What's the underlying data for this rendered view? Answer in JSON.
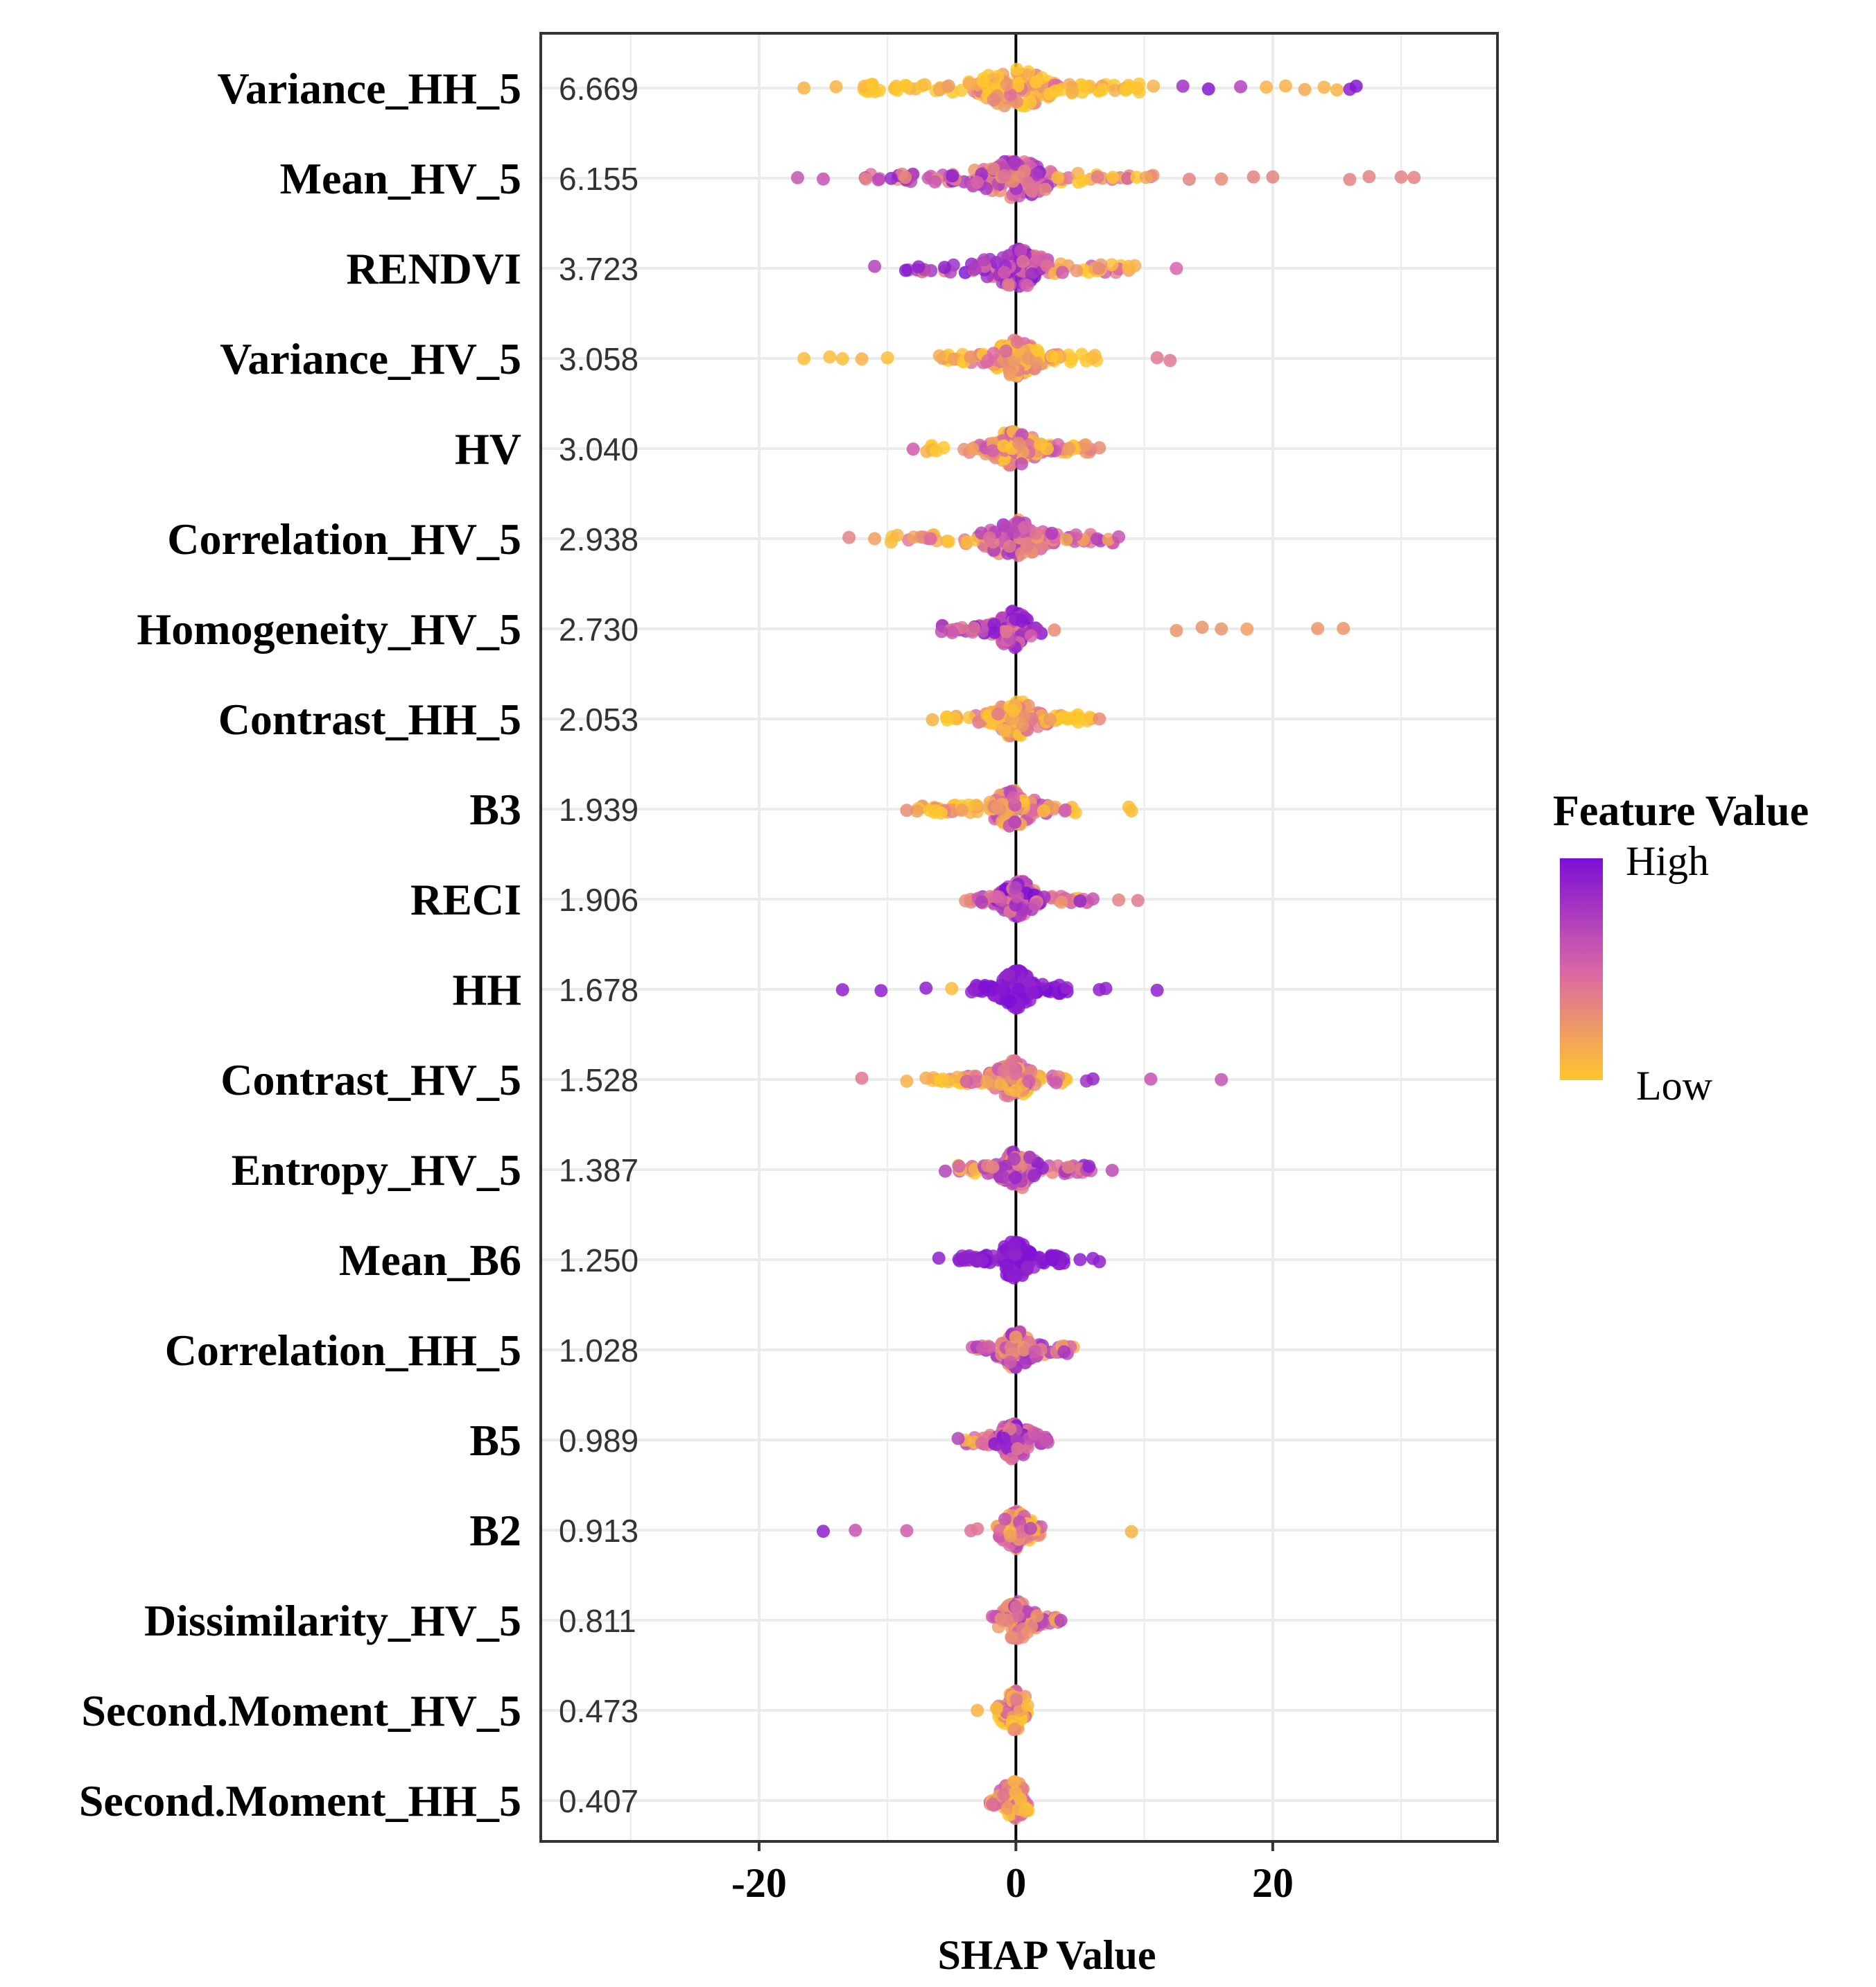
{
  "chart_data": {
    "type": "scatter",
    "title": "",
    "xlabel": "SHAP Value",
    "ylabel": "",
    "xlim": [
      -37,
      37.5
    ],
    "xticks": [
      -20,
      0,
      20
    ],
    "xtick_labels": [
      "-20",
      "0",
      "20"
    ],
    "grid": true,
    "legend": {
      "title": "Feature Value",
      "high_label": "High",
      "low_label": "Low",
      "position": "right",
      "high_color": "#7b0fd6",
      "mid_color": "#d965a8",
      "low_color": "#ffc72c"
    },
    "colors": {
      "zero_line": "#000000",
      "grid": "#ebebeb",
      "frame": "#333333"
    },
    "features": [
      {
        "name": "Variance_HH_5",
        "importance": "6.669",
        "min": -16.5,
        "max": 26.5,
        "core": [
          -12,
          11
        ],
        "skew": 0.25,
        "lowSide": "both",
        "coreMix": 0.15,
        "n": 170,
        "outliers": [
          [
            -16.5,
            0.1
          ],
          [
            -14,
            0.1
          ],
          [
            13,
            0.8
          ],
          [
            15,
            0.95
          ],
          [
            17.5,
            0.7
          ],
          [
            19.5,
            0.1
          ],
          [
            21,
            0.1
          ],
          [
            22.5,
            0.15
          ],
          [
            24,
            0.1
          ],
          [
            25,
            0.1
          ],
          [
            26,
            0.9
          ],
          [
            26.5,
            0.95
          ]
        ]
      },
      {
        "name": "Mean_HV_5",
        "importance": "6.155",
        "min": -17,
        "max": 31,
        "core": [
          -12,
          11
        ],
        "skew": 0.6,
        "lowSide": "right",
        "coreMix": 0.6,
        "n": 150,
        "outliers": [
          [
            -17,
            0.6
          ],
          [
            -15,
            0.6
          ],
          [
            13.5,
            0.35
          ],
          [
            16,
            0.3
          ],
          [
            18.5,
            0.35
          ],
          [
            20,
            0.35
          ],
          [
            26,
            0.35
          ],
          [
            27.5,
            0.35
          ],
          [
            30,
            0.35
          ],
          [
            31,
            0.35
          ]
        ]
      },
      {
        "name": "RENDVI",
        "importance": "3.723",
        "min": -11,
        "max": 12.5,
        "core": [
          -9,
          10
        ],
        "skew": 0.6,
        "lowSide": "right",
        "coreMix": 0.65,
        "n": 130,
        "outliers": [
          [
            -11,
            0.7
          ],
          [
            12.5,
            0.5
          ]
        ]
      },
      {
        "name": "Variance_HV_5",
        "importance": "3.058",
        "min": -16.5,
        "max": 12,
        "core": [
          -6,
          7
        ],
        "skew": 0.3,
        "lowSide": "both",
        "coreMix": 0.2,
        "n": 130,
        "outliers": [
          [
            -16.5,
            0.05
          ],
          [
            -14.5,
            0.05
          ],
          [
            -13.5,
            0.05
          ],
          [
            -10,
            0.05
          ],
          [
            -12,
            0.1
          ],
          [
            11,
            0.4
          ],
          [
            12,
            0.4
          ]
        ]
      },
      {
        "name": "HV",
        "importance": "3.040",
        "min": -8,
        "max": 6.5,
        "core": [
          -7,
          6
        ],
        "skew": 0.3,
        "lowSide": "both",
        "coreMix": 0.3,
        "n": 130,
        "outliers": [
          [
            -8,
            0.55
          ],
          [
            6.5,
            0.3
          ]
        ]
      },
      {
        "name": "Correlation_HV_5",
        "importance": "2.938",
        "min": -13,
        "max": 8,
        "core": [
          -10,
          8
        ],
        "skew": 0.5,
        "lowSide": "left",
        "coreMix": 0.5,
        "n": 130,
        "outliers": [
          [
            -13,
            0.35
          ],
          [
            -11,
            0.2
          ],
          [
            8,
            0.6
          ]
        ]
      },
      {
        "name": "Homogeneity_HV_5",
        "importance": "2.730",
        "min": -7,
        "max": 25.5,
        "core": [
          -6,
          2
        ],
        "skew": 0.7,
        "lowSide": "right",
        "coreMix": 0.7,
        "n": 110,
        "outliers": [
          [
            3,
            0.3
          ],
          [
            12.5,
            0.25
          ],
          [
            14.5,
            0.25
          ],
          [
            16,
            0.25
          ],
          [
            18,
            0.2
          ],
          [
            23.5,
            0.25
          ],
          [
            25.5,
            0.25
          ]
        ]
      },
      {
        "name": "Contrast_HH_5",
        "importance": "2.053",
        "min": -6.5,
        "max": 6.5,
        "core": [
          -6,
          6
        ],
        "skew": 0.2,
        "lowSide": "both",
        "coreMix": 0.15,
        "n": 130,
        "outliers": [
          [
            -6.5,
            0.1
          ],
          [
            6.5,
            0.3
          ]
        ]
      },
      {
        "name": "B3",
        "importance": "1.939",
        "min": -8.5,
        "max": 9,
        "core": [
          -8,
          5
        ],
        "skew": 0.4,
        "lowSide": "both",
        "coreMix": 0.35,
        "n": 120,
        "outliers": [
          [
            -8.5,
            0.3
          ],
          [
            9,
            0.05
          ],
          [
            8.8,
            0.05
          ]
        ]
      },
      {
        "name": "RECI",
        "importance": "1.906",
        "min": -4.5,
        "max": 9.5,
        "core": [
          -4,
          6
        ],
        "skew": 0.6,
        "lowSide": "right",
        "coreMix": 0.65,
        "n": 110,
        "outliers": [
          [
            8,
            0.35
          ],
          [
            9.5,
            0.4
          ],
          [
            5,
            0.85
          ],
          [
            6,
            0.6
          ]
        ]
      },
      {
        "name": "HH",
        "importance": "1.678",
        "min": -13.5,
        "max": 11,
        "core": [
          -3.5,
          4
        ],
        "skew": 0.95,
        "lowSide": "none",
        "coreMix": 0.97,
        "n": 140,
        "outliers": [
          [
            -13.5,
            0.9
          ],
          [
            -10.5,
            0.9
          ],
          [
            -7,
            0.9
          ],
          [
            -5,
            0.05
          ],
          [
            7,
            0.9
          ],
          [
            11,
            0.9
          ],
          [
            6.5,
            0.9
          ]
        ]
      },
      {
        "name": "Contrast_HV_5",
        "importance": "1.528",
        "min": -12,
        "max": 16,
        "core": [
          -7,
          4
        ],
        "skew": 0.4,
        "lowSide": "both",
        "coreMix": 0.3,
        "n": 120,
        "outliers": [
          [
            -12,
            0.4
          ],
          [
            -8.5,
            0.1
          ],
          [
            -7,
            0.15
          ],
          [
            5.5,
            0.8
          ],
          [
            6,
            0.85
          ],
          [
            10.5,
            0.6
          ],
          [
            16,
            0.6
          ]
        ]
      },
      {
        "name": "Entropy_HV_5",
        "importance": "1.387",
        "min": -5.5,
        "max": 7.5,
        "core": [
          -4.5,
          6
        ],
        "skew": 0.6,
        "lowSide": "left",
        "coreMix": 0.6,
        "n": 120,
        "outliers": [
          [
            -5.5,
            0.7
          ],
          [
            7.5,
            0.65
          ]
        ]
      },
      {
        "name": "Mean_B6",
        "importance": "1.250",
        "min": -6,
        "max": 6.5,
        "core": [
          -4.5,
          4
        ],
        "skew": 0.97,
        "lowSide": "none",
        "coreMix": 0.98,
        "n": 140,
        "outliers": [
          [
            -6,
            0.9
          ],
          [
            5,
            0.9
          ],
          [
            6,
            0.9
          ],
          [
            6.5,
            0.9
          ]
        ]
      },
      {
        "name": "Correlation_HH_5",
        "importance": "1.028",
        "min": -3.5,
        "max": 4.5,
        "core": [
          -3.5,
          4.5
        ],
        "skew": 0.5,
        "lowSide": "both",
        "coreMix": 0.5,
        "n": 110,
        "outliers": []
      },
      {
        "name": "B5",
        "importance": "0.989",
        "min": -4.5,
        "max": 2.5,
        "core": [
          -4,
          2.5
        ],
        "skew": 0.65,
        "lowSide": "left",
        "coreMix": 0.65,
        "n": 110,
        "outliers": [
          [
            -4.5,
            0.7
          ]
        ]
      },
      {
        "name": "B2",
        "importance": "0.913",
        "min": -15,
        "max": 9,
        "core": [
          -1.5,
          2
        ],
        "skew": 0.4,
        "lowSide": "both",
        "coreMix": 0.35,
        "n": 110,
        "outliers": [
          [
            -15,
            0.9
          ],
          [
            -12.5,
            0.6
          ],
          [
            -8.5,
            0.55
          ],
          [
            -3.5,
            0.45
          ],
          [
            -3,
            0.4
          ],
          [
            9,
            0.1
          ]
        ]
      },
      {
        "name": "Dissimilarity_HV_5",
        "importance": "0.811",
        "min": -2,
        "max": 3.5,
        "core": [
          -2,
          3.5
        ],
        "skew": 0.5,
        "lowSide": "both",
        "coreMix": 0.45,
        "n": 110,
        "outliers": [
          [
            3.5,
            0.7
          ]
        ]
      },
      {
        "name": "Second.Moment_HV_5",
        "importance": "0.473",
        "min": -3,
        "max": 1,
        "core": [
          -1.5,
          1
        ],
        "skew": 0.3,
        "lowSide": "both",
        "coreMix": 0.25,
        "n": 90,
        "outliers": [
          [
            -3,
            0.1
          ],
          [
            -1.5,
            0.1
          ]
        ]
      },
      {
        "name": "Second.Moment_HH_5",
        "importance": "0.407",
        "min": -2,
        "max": 1,
        "core": [
          -2,
          1
        ],
        "skew": 0.35,
        "lowSide": "both",
        "coreMix": 0.3,
        "n": 90,
        "outliers": []
      }
    ]
  }
}
